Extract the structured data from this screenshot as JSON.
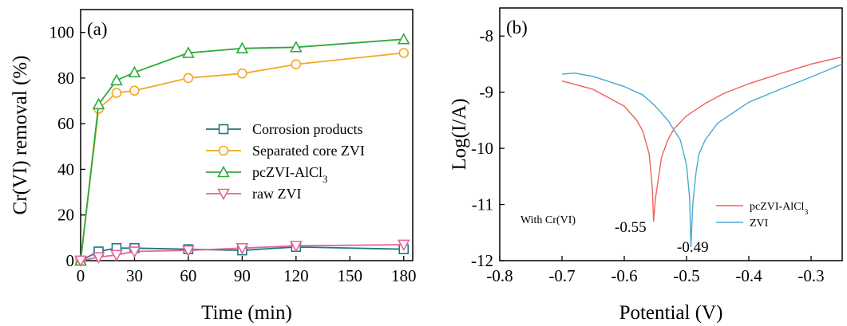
{
  "chart_data": [
    {
      "type": "line",
      "panel_label": "(a)",
      "xlabel": "Time (min)",
      "ylabel": "Cr(VI) removal (%)",
      "xlim": [
        0,
        185
      ],
      "ylim": [
        0,
        110
      ],
      "xticks": [
        0,
        30,
        60,
        90,
        120,
        150,
        180
      ],
      "yticks": [
        0,
        20,
        40,
        60,
        80,
        100
      ],
      "legend_position": "center-right",
      "series": [
        {
          "name": "Corrosion products",
          "color": "#1a7a80",
          "marker": "square",
          "x": [
            0,
            10,
            20,
            30,
            60,
            90,
            120,
            180
          ],
          "y": [
            0,
            4,
            5.5,
            5.5,
            5,
            4.5,
            6,
            5
          ]
        },
        {
          "name": "Separated core ZVI",
          "color": "#f5a623",
          "marker": "circle",
          "x": [
            0,
            10,
            20,
            30,
            60,
            90,
            120,
            180
          ],
          "y": [
            0,
            66.5,
            73.5,
            74.5,
            80,
            82,
            86,
            91
          ]
        },
        {
          "name": "pcZVI-AlCl",
          "name_subscript": "3",
          "color": "#2eaa3c",
          "marker": "triangle-up",
          "x": [
            0,
            10,
            20,
            30,
            60,
            90,
            120,
            180
          ],
          "y": [
            0,
            68.5,
            79,
            82.5,
            91,
            93,
            93.5,
            97
          ]
        },
        {
          "name": "raw ZVI",
          "color": "#e8629a",
          "marker": "triangle-down",
          "x": [
            0,
            10,
            20,
            30,
            60,
            90,
            120,
            180
          ],
          "y": [
            0,
            1.5,
            2.5,
            4,
            4.5,
            5.5,
            6.5,
            7
          ]
        }
      ]
    },
    {
      "type": "line",
      "panel_label": "(b)",
      "xlabel": "Potential (V)",
      "ylabel": "Log(I/A)",
      "xlim": [
        -0.8,
        -0.25
      ],
      "ylim": [
        -12,
        -7.5
      ],
      "xticks": [
        -0.8,
        -0.7,
        -0.6,
        -0.5,
        -0.4,
        -0.3
      ],
      "yticks": [
        -12,
        -11,
        -10,
        -9,
        -8
      ],
      "legend_position": "bottom-right",
      "annotations": {
        "condition": "With Cr(VI)",
        "corrosion_potential_1": "-0.55",
        "corrosion_potential_2": "-0.49"
      },
      "series": [
        {
          "name": "pcZVI-AlCl",
          "name_subscript": "3",
          "color": "#f0605a",
          "x": [
            -0.7,
            -0.65,
            -0.6,
            -0.58,
            -0.57,
            -0.56,
            -0.555,
            -0.553,
            -0.55,
            -0.54,
            -0.53,
            -0.52,
            -0.5,
            -0.47,
            -0.44,
            -0.4,
            -0.35,
            -0.3,
            -0.25
          ],
          "y": [
            -8.8,
            -8.95,
            -9.25,
            -9.5,
            -9.7,
            -10.1,
            -10.7,
            -11.3,
            -10.9,
            -10.15,
            -9.85,
            -9.65,
            -9.42,
            -9.2,
            -9.02,
            -8.85,
            -8.67,
            -8.5,
            -8.37
          ]
        },
        {
          "name": "ZVI",
          "color": "#4aa8cf",
          "x": [
            -0.7,
            -0.68,
            -0.65,
            -0.6,
            -0.57,
            -0.55,
            -0.53,
            -0.51,
            -0.5,
            -0.495,
            -0.493,
            -0.49,
            -0.485,
            -0.48,
            -0.47,
            -0.45,
            -0.4,
            -0.35,
            -0.3,
            -0.25
          ],
          "y": [
            -8.68,
            -8.66,
            -8.72,
            -8.9,
            -9.05,
            -9.25,
            -9.5,
            -9.85,
            -10.3,
            -10.9,
            -11.75,
            -11.0,
            -10.45,
            -10.1,
            -9.85,
            -9.55,
            -9.18,
            -8.95,
            -8.73,
            -8.5
          ]
        }
      ]
    }
  ]
}
